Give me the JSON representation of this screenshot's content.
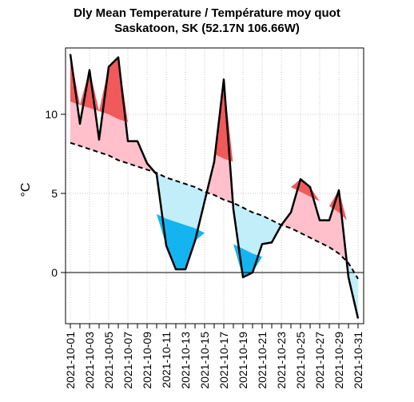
{
  "title_line1": "Dly Mean Temperature / Température moy quot",
  "title_line2": "Saskatoon, SK (52.17N 106.66W)",
  "chart_data": {
    "type": "line",
    "ylabel": "°C",
    "ylim": [
      -4,
      14
    ],
    "yticks": [
      0,
      5,
      10
    ],
    "grid": true,
    "x": [
      "2021-10-01",
      "2021-10-02",
      "2021-10-03",
      "2021-10-04",
      "2021-10-05",
      "2021-10-06",
      "2021-10-07",
      "2021-10-08",
      "2021-10-09",
      "2021-10-10",
      "2021-10-11",
      "2021-10-12",
      "2021-10-13",
      "2021-10-14",
      "2021-10-15",
      "2021-10-16",
      "2021-10-17",
      "2021-10-18",
      "2021-10-19",
      "2021-10-20",
      "2021-10-21",
      "2021-10-22",
      "2021-10-23",
      "2021-10-24",
      "2021-10-25",
      "2021-10-26",
      "2021-10-27",
      "2021-10-28",
      "2021-10-29",
      "2021-10-30",
      "2021-10-31"
    ],
    "xtick_labels": [
      "2021-10-01",
      "2021-10-03",
      "2021-10-05",
      "2021-10-07",
      "2021-10-09",
      "2021-10-11",
      "2021-10-13",
      "2021-10-15",
      "2021-10-17",
      "2021-10-19",
      "2021-10-21",
      "2021-10-23",
      "2021-10-25",
      "2021-10-27",
      "2021-10-29",
      "2021-10-31"
    ],
    "series": [
      {
        "role": "mean",
        "style": "solid",
        "color": "#000000",
        "values": [
          13.8,
          9.4,
          12.8,
          8.4,
          13.0,
          13.6,
          8.3,
          8.3,
          6.9,
          6.2,
          1.7,
          0.2,
          0.2,
          2.0,
          4.5,
          7.0,
          12.2,
          4.0,
          -0.3,
          0.0,
          1.8,
          1.9,
          3.0,
          3.8,
          5.9,
          5.4,
          3.3,
          3.3,
          5.2,
          -0.3,
          -2.9
        ]
      },
      {
        "role": "normal",
        "style": "dashed",
        "color": "#000000",
        "values": [
          8.2,
          8.0,
          7.8,
          7.6,
          7.4,
          7.1,
          6.9,
          6.7,
          6.5,
          6.3,
          6.0,
          5.8,
          5.6,
          5.4,
          5.1,
          4.9,
          4.6,
          4.4,
          4.1,
          3.8,
          3.6,
          3.3,
          3.0,
          2.8,
          2.5,
          2.2,
          1.9,
          1.6,
          1.2,
          0.6,
          -0.4
        ]
      }
    ],
    "fill_colors": {
      "above_normal": "#ffc0cb",
      "below_normal": "#c2eefa",
      "extreme_above": "#f05a5a",
      "extreme_below": "#14b4f0"
    },
    "extreme_band": {
      "above_offset": 2.6,
      "below_offset": 2.6
    }
  }
}
